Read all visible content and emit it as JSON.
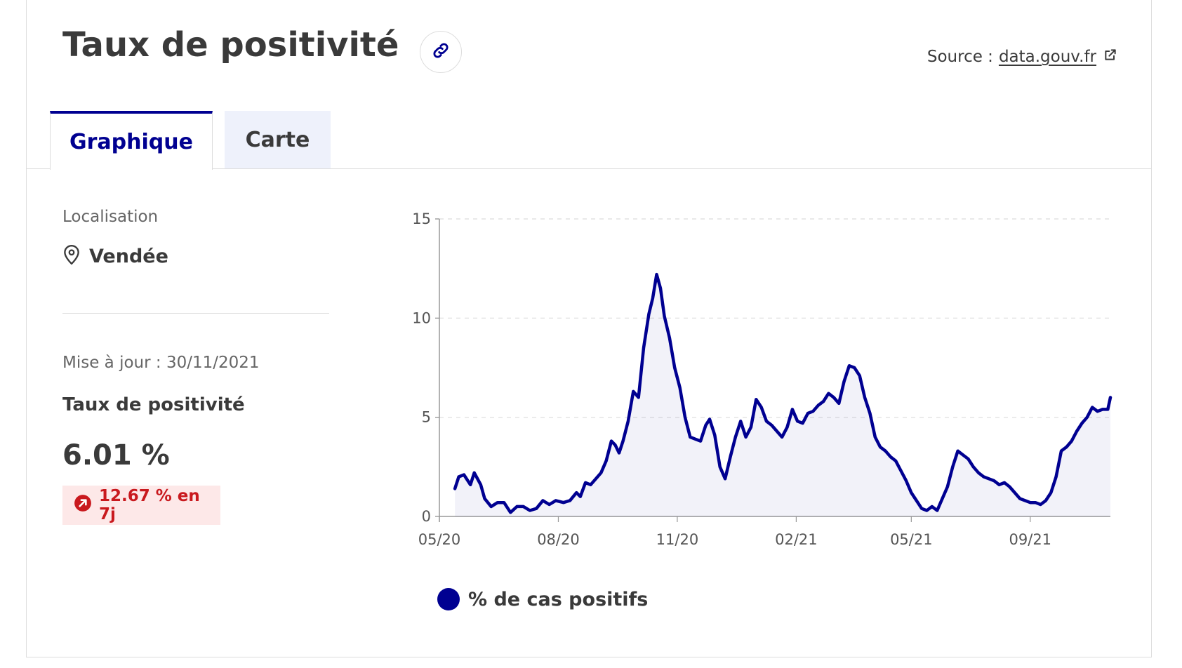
{
  "header": {
    "title": "Taux de positivité",
    "source_prefix": "Source :",
    "source_link": "data.gouv.fr"
  },
  "tabs": [
    {
      "label": "Graphique",
      "active": true
    },
    {
      "label": "Carte",
      "active": false
    }
  ],
  "sidebar": {
    "location_label": "Localisation",
    "location_value": "Vendée",
    "updated": "Mise à jour : 30/11/2021",
    "kpi_title": "Taux de positivité",
    "kpi_value": "6.01 %",
    "trend": "12.67 % en 7j"
  },
  "colors": {
    "accent": "#000091",
    "text": "#3a3a3a",
    "trend_red": "#c9191e",
    "trend_bg": "#fde8e8"
  },
  "icons": {
    "link": "link-icon",
    "external": "external-link-icon",
    "location": "map-pin-icon",
    "trend": "arrow-up-right-circle-icon"
  },
  "chart_data": {
    "type": "area",
    "y_ticks": [
      "0",
      "5",
      "10",
      "15"
    ],
    "x_ticks": [
      "05/20",
      "08/20",
      "11/20",
      "02/21",
      "05/21",
      "09/21"
    ],
    "ylim": [
      0,
      15
    ],
    "grid": "horizontal dashed",
    "legend_position": "bottom",
    "series": [
      {
        "name": "% de cas positifs",
        "color": "#000091",
        "points": [
          [
            "2020-05-13",
            1.4
          ],
          [
            "2020-05-16",
            2.0
          ],
          [
            "2020-05-20",
            2.1
          ],
          [
            "2020-05-25",
            1.6
          ],
          [
            "2020-05-28",
            2.2
          ],
          [
            "2020-06-02",
            1.6
          ],
          [
            "2020-06-05",
            0.9
          ],
          [
            "2020-06-10",
            0.5
          ],
          [
            "2020-06-15",
            0.7
          ],
          [
            "2020-06-20",
            0.7
          ],
          [
            "2020-06-25",
            0.2
          ],
          [
            "2020-06-30",
            0.5
          ],
          [
            "2020-07-05",
            0.5
          ],
          [
            "2020-07-10",
            0.3
          ],
          [
            "2020-07-15",
            0.4
          ],
          [
            "2020-07-20",
            0.8
          ],
          [
            "2020-07-25",
            0.6
          ],
          [
            "2020-07-30",
            0.8
          ],
          [
            "2020-08-05",
            0.7
          ],
          [
            "2020-08-10",
            0.8
          ],
          [
            "2020-08-15",
            1.2
          ],
          [
            "2020-08-18",
            1.0
          ],
          [
            "2020-08-22",
            1.7
          ],
          [
            "2020-08-26",
            1.6
          ],
          [
            "2020-08-30",
            1.9
          ],
          [
            "2020-09-03",
            2.2
          ],
          [
            "2020-09-07",
            2.8
          ],
          [
            "2020-09-11",
            3.8
          ],
          [
            "2020-09-14",
            3.6
          ],
          [
            "2020-09-17",
            3.2
          ],
          [
            "2020-09-20",
            3.8
          ],
          [
            "2020-09-24",
            4.8
          ],
          [
            "2020-09-28",
            6.3
          ],
          [
            "2020-10-02",
            6.0
          ],
          [
            "2020-10-06",
            8.5
          ],
          [
            "2020-10-10",
            10.2
          ],
          [
            "2020-10-13",
            11.0
          ],
          [
            "2020-10-16",
            12.2
          ],
          [
            "2020-10-19",
            11.5
          ],
          [
            "2020-10-22",
            10.1
          ],
          [
            "2020-10-26",
            9.0
          ],
          [
            "2020-10-30",
            7.5
          ],
          [
            "2020-11-03",
            6.5
          ],
          [
            "2020-11-07",
            5.0
          ],
          [
            "2020-11-11",
            4.0
          ],
          [
            "2020-11-15",
            3.9
          ],
          [
            "2020-11-19",
            3.8
          ],
          [
            "2020-11-23",
            4.6
          ],
          [
            "2020-11-26",
            4.9
          ],
          [
            "2020-11-30",
            4.1
          ],
          [
            "2020-12-04",
            2.5
          ],
          [
            "2020-12-08",
            1.9
          ],
          [
            "2020-12-12",
            3.0
          ],
          [
            "2020-12-16",
            4.0
          ],
          [
            "2020-12-20",
            4.8
          ],
          [
            "2020-12-24",
            4.0
          ],
          [
            "2020-12-28",
            4.5
          ],
          [
            "2021-01-01",
            5.9
          ],
          [
            "2021-01-05",
            5.5
          ],
          [
            "2021-01-09",
            4.8
          ],
          [
            "2021-01-13",
            4.6
          ],
          [
            "2021-01-17",
            4.3
          ],
          [
            "2021-01-21",
            4.0
          ],
          [
            "2021-01-25",
            4.5
          ],
          [
            "2021-01-29",
            5.4
          ],
          [
            "2021-02-02",
            4.8
          ],
          [
            "2021-02-06",
            4.7
          ],
          [
            "2021-02-10",
            5.2
          ],
          [
            "2021-02-14",
            5.3
          ],
          [
            "2021-02-18",
            5.6
          ],
          [
            "2021-02-22",
            5.8
          ],
          [
            "2021-02-26",
            6.2
          ],
          [
            "2021-03-02",
            6.0
          ],
          [
            "2021-03-06",
            5.7
          ],
          [
            "2021-03-10",
            6.8
          ],
          [
            "2021-03-14",
            7.6
          ],
          [
            "2021-03-18",
            7.5
          ],
          [
            "2021-03-22",
            7.1
          ],
          [
            "2021-03-26",
            6.0
          ],
          [
            "2021-03-30",
            5.2
          ],
          [
            "2021-04-03",
            4.0
          ],
          [
            "2021-04-07",
            3.5
          ],
          [
            "2021-04-11",
            3.3
          ],
          [
            "2021-04-15",
            3.0
          ],
          [
            "2021-04-19",
            2.8
          ],
          [
            "2021-04-23",
            2.3
          ],
          [
            "2021-04-27",
            1.8
          ],
          [
            "2021-05-01",
            1.2
          ],
          [
            "2021-05-05",
            0.8
          ],
          [
            "2021-05-09",
            0.4
          ],
          [
            "2021-05-13",
            0.3
          ],
          [
            "2021-05-17",
            0.5
          ],
          [
            "2021-05-21",
            0.3
          ],
          [
            "2021-05-25",
            0.9
          ],
          [
            "2021-05-29",
            1.5
          ],
          [
            "2021-06-02",
            2.5
          ],
          [
            "2021-06-06",
            3.3
          ],
          [
            "2021-06-10",
            3.1
          ],
          [
            "2021-06-14",
            2.9
          ],
          [
            "2021-06-18",
            2.5
          ],
          [
            "2021-06-22",
            2.2
          ],
          [
            "2021-06-26",
            2.0
          ],
          [
            "2021-06-30",
            1.9
          ],
          [
            "2021-07-04",
            1.8
          ],
          [
            "2021-07-08",
            1.6
          ],
          [
            "2021-07-12",
            1.7
          ],
          [
            "2021-07-16",
            1.5
          ],
          [
            "2021-07-20",
            1.2
          ],
          [
            "2021-07-24",
            0.9
          ],
          [
            "2021-07-28",
            0.8
          ],
          [
            "2021-08-01",
            0.7
          ],
          [
            "2021-08-05",
            0.7
          ],
          [
            "2021-08-09",
            0.6
          ],
          [
            "2021-08-13",
            0.8
          ],
          [
            "2021-08-17",
            1.2
          ],
          [
            "2021-08-21",
            2.0
          ],
          [
            "2021-08-25",
            3.3
          ],
          [
            "2021-08-29",
            3.5
          ],
          [
            "2021-09-02",
            3.8
          ],
          [
            "2021-09-06",
            4.3
          ],
          [
            "2021-09-10",
            4.7
          ],
          [
            "2021-09-14",
            5.0
          ],
          [
            "2021-09-18",
            5.5
          ],
          [
            "2021-09-22",
            5.3
          ],
          [
            "2021-09-26",
            5.4
          ],
          [
            "2021-09-30",
            5.4
          ],
          [
            "2021-10-02",
            6.0
          ]
        ]
      }
    ]
  }
}
